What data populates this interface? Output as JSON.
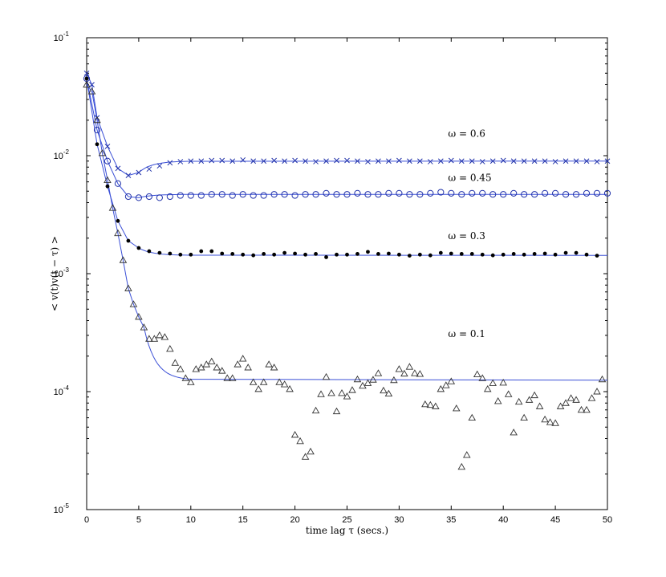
{
  "chart_data": {
    "type": "scatter",
    "title": "",
    "xlabel": "time lag τ (secs.)",
    "ylabel": "< v(t)v(t − τ) >",
    "xlim": [
      0,
      50
    ],
    "ylim": [
      1e-05,
      0.1
    ],
    "yscale": "log",
    "grid": false,
    "legend": "none",
    "x_ticks": [
      0,
      5,
      10,
      15,
      20,
      25,
      30,
      35,
      40,
      45,
      50
    ],
    "x_tick_labels": [
      "0",
      "5",
      "10",
      "15",
      "20",
      "25",
      "30",
      "35",
      "40",
      "45",
      "50"
    ],
    "y_ticks": [
      {
        "value": 1e-05,
        "base": "10",
        "exp": "-5"
      },
      {
        "value": 0.0001,
        "base": "10",
        "exp": "-4"
      },
      {
        "value": 0.001,
        "base": "10",
        "exp": "-3"
      },
      {
        "value": 0.01,
        "base": "10",
        "exp": "-2"
      },
      {
        "value": 0.1,
        "base": "10",
        "exp": "-1"
      }
    ],
    "colors": {
      "fit_line": "#3a4fd6",
      "x_marker": "#2233aa",
      "o_marker": "#2233aa",
      "dot_marker": "#000000",
      "triangle_marker": "#333333"
    },
    "annotations": [
      {
        "text": "ω = 0.6",
        "x": 34.7,
        "y": 0.0145
      },
      {
        "text": "ω = 0.45",
        "x": 34.7,
        "y": 0.0061
      },
      {
        "text": "ω = 0.3",
        "x": 34.7,
        "y": 0.00196
      },
      {
        "text": "ω = 0.1",
        "x": 34.7,
        "y": 0.00029
      }
    ],
    "series": [
      {
        "marker": "x",
        "fit_asymptote": 0.009,
        "points": [
          [
            0,
            0.05
          ],
          [
            0.5,
            0.04
          ],
          [
            1,
            0.021
          ],
          [
            2,
            0.012
          ],
          [
            3,
            0.0078
          ],
          [
            4,
            0.0068
          ],
          [
            5,
            0.0072
          ],
          [
            6,
            0.0077
          ],
          [
            7,
            0.0082
          ],
          [
            8,
            0.0087
          ],
          [
            9,
            0.0089
          ],
          [
            10,
            0.009
          ],
          [
            11,
            0.009
          ],
          [
            12,
            0.0091
          ],
          [
            13,
            0.0091
          ],
          [
            14,
            0.009
          ],
          [
            15,
            0.0092
          ],
          [
            16,
            0.009
          ],
          [
            17,
            0.009
          ],
          [
            18,
            0.0091
          ],
          [
            19,
            0.009
          ],
          [
            20,
            0.0091
          ],
          [
            21,
            0.009
          ],
          [
            22,
            0.0089
          ],
          [
            23,
            0.009
          ],
          [
            24,
            0.0091
          ],
          [
            25,
            0.0091
          ],
          [
            26,
            0.009
          ],
          [
            27,
            0.0089
          ],
          [
            28,
            0.009
          ],
          [
            29,
            0.009
          ],
          [
            30,
            0.0091
          ],
          [
            31,
            0.009
          ],
          [
            32,
            0.009
          ],
          [
            33,
            0.0089
          ],
          [
            34,
            0.009
          ],
          [
            35,
            0.0091
          ],
          [
            36,
            0.009
          ],
          [
            37,
            0.009
          ],
          [
            38,
            0.0089
          ],
          [
            39,
            0.009
          ],
          [
            40,
            0.0091
          ],
          [
            41,
            0.009
          ],
          [
            42,
            0.009
          ],
          [
            43,
            0.009
          ],
          [
            44,
            0.009
          ],
          [
            45,
            0.0089
          ],
          [
            46,
            0.009
          ],
          [
            47,
            0.009
          ],
          [
            48,
            0.009
          ],
          [
            49,
            0.0089
          ],
          [
            50,
            0.009
          ]
        ]
      },
      {
        "marker": "o",
        "fit_asymptote": 0.0047,
        "points": [
          [
            0,
            0.045
          ],
          [
            1,
            0.0165
          ],
          [
            2,
            0.009
          ],
          [
            3,
            0.0058
          ],
          [
            4,
            0.0045
          ],
          [
            5,
            0.0044
          ],
          [
            6,
            0.0045
          ],
          [
            7,
            0.0044
          ],
          [
            8,
            0.0045
          ],
          [
            9,
            0.0046
          ],
          [
            10,
            0.0046
          ],
          [
            11,
            0.0046
          ],
          [
            12,
            0.0047
          ],
          [
            13,
            0.0047
          ],
          [
            14,
            0.0046
          ],
          [
            15,
            0.0047
          ],
          [
            16,
            0.0046
          ],
          [
            17,
            0.0046
          ],
          [
            18,
            0.0047
          ],
          [
            19,
            0.0047
          ],
          [
            20,
            0.0046
          ],
          [
            21,
            0.0047
          ],
          [
            22,
            0.0047
          ],
          [
            23,
            0.0048
          ],
          [
            24,
            0.0047
          ],
          [
            25,
            0.0047
          ],
          [
            26,
            0.0048
          ],
          [
            27,
            0.0047
          ],
          [
            28,
            0.0047
          ],
          [
            29,
            0.0048
          ],
          [
            30,
            0.0048
          ],
          [
            31,
            0.0047
          ],
          [
            32,
            0.0047
          ],
          [
            33,
            0.0048
          ],
          [
            34,
            0.0049
          ],
          [
            35,
            0.0048
          ],
          [
            36,
            0.0047
          ],
          [
            37,
            0.0048
          ],
          [
            38,
            0.0048
          ],
          [
            39,
            0.0047
          ],
          [
            40,
            0.0047
          ],
          [
            41,
            0.0048
          ],
          [
            42,
            0.0047
          ],
          [
            43,
            0.0047
          ],
          [
            44,
            0.0048
          ],
          [
            45,
            0.0048
          ],
          [
            46,
            0.0047
          ],
          [
            47,
            0.0047
          ],
          [
            48,
            0.0048
          ],
          [
            49,
            0.0048
          ],
          [
            50,
            0.0048
          ]
        ]
      },
      {
        "marker": "dot",
        "fit_asymptote": 0.00143,
        "points": [
          [
            0,
            0.045
          ],
          [
            1,
            0.0125
          ],
          [
            2,
            0.0055
          ],
          [
            3,
            0.0028
          ],
          [
            4,
            0.0019
          ],
          [
            5,
            0.00165
          ],
          [
            6,
            0.00155
          ],
          [
            7,
            0.0015
          ],
          [
            8,
            0.00148
          ],
          [
            9,
            0.00145
          ],
          [
            10,
            0.00145
          ],
          [
            11,
            0.00155
          ],
          [
            12,
            0.00155
          ],
          [
            13,
            0.00148
          ],
          [
            14,
            0.00147
          ],
          [
            15,
            0.00145
          ],
          [
            16,
            0.00143
          ],
          [
            17,
            0.00147
          ],
          [
            18,
            0.00145
          ],
          [
            19,
            0.0015
          ],
          [
            20,
            0.00148
          ],
          [
            21,
            0.00145
          ],
          [
            22,
            0.00147
          ],
          [
            23,
            0.00138
          ],
          [
            24,
            0.00145
          ],
          [
            25,
            0.00145
          ],
          [
            26,
            0.00147
          ],
          [
            27,
            0.00153
          ],
          [
            28,
            0.00147
          ],
          [
            29,
            0.00148
          ],
          [
            30,
            0.00145
          ],
          [
            31,
            0.00142
          ],
          [
            32,
            0.00145
          ],
          [
            33,
            0.00143
          ],
          [
            34,
            0.0015
          ],
          [
            35,
            0.00148
          ],
          [
            36,
            0.00147
          ],
          [
            37,
            0.00147
          ],
          [
            38,
            0.00145
          ],
          [
            39,
            0.00143
          ],
          [
            40,
            0.00145
          ],
          [
            41,
            0.00147
          ],
          [
            42,
            0.00145
          ],
          [
            43,
            0.00147
          ],
          [
            44,
            0.00148
          ],
          [
            45,
            0.00145
          ],
          [
            46,
            0.0015
          ],
          [
            47,
            0.0015
          ],
          [
            48,
            0.00145
          ],
          [
            49,
            0.00142
          ]
        ]
      },
      {
        "marker": "triangle",
        "fit_asymptote": 0.000125,
        "points": [
          [
            0,
            0.04
          ],
          [
            0.5,
            0.035
          ],
          [
            1,
            0.02
          ],
          [
            1.5,
            0.0105
          ],
          [
            2,
            0.0062
          ],
          [
            2.5,
            0.0036
          ],
          [
            3,
            0.0022
          ],
          [
            3.5,
            0.0013
          ],
          [
            4,
            0.00075
          ],
          [
            4.5,
            0.00055
          ],
          [
            5,
            0.00043
          ],
          [
            5.5,
            0.00035
          ],
          [
            6,
            0.00028
          ],
          [
            6.5,
            0.00028
          ],
          [
            7,
            0.0003
          ],
          [
            7.5,
            0.00029
          ],
          [
            8,
            0.00023
          ],
          [
            8.5,
            0.000175
          ],
          [
            9,
            0.000155
          ],
          [
            9.5,
            0.00013
          ],
          [
            10,
            0.00012
          ],
          [
            10.5,
            0.000155
          ],
          [
            11,
            0.00016
          ],
          [
            11.5,
            0.00017
          ],
          [
            12,
            0.00018
          ],
          [
            12.5,
            0.00016
          ],
          [
            13,
            0.00015
          ],
          [
            13.5,
            0.00013
          ],
          [
            14,
            0.00013
          ],
          [
            14.5,
            0.00017
          ],
          [
            15,
            0.00019
          ],
          [
            15.5,
            0.00016
          ],
          [
            16,
            0.00012
          ],
          [
            16.5,
            0.000105
          ],
          [
            17,
            0.00012
          ],
          [
            17.5,
            0.00017
          ],
          [
            18,
            0.00016
          ],
          [
            18.5,
            0.00012
          ],
          [
            19,
            0.000115
          ],
          [
            19.5,
            0.000105
          ],
          [
            20,
            4.3e-05
          ],
          [
            20.5,
            3.8e-05
          ],
          [
            21,
            2.8e-05
          ],
          [
            21.5,
            3.1e-05
          ],
          [
            22,
            6.9e-05
          ],
          [
            22.5,
            9.5e-05
          ],
          [
            23,
            0.000133
          ],
          [
            23.5,
            9.7e-05
          ],
          [
            24,
            6.8e-05
          ],
          [
            24.5,
            9.7e-05
          ],
          [
            25,
            9.1e-05
          ],
          [
            25.5,
            0.000103
          ],
          [
            26,
            0.000127
          ],
          [
            26.5,
            0.000112
          ],
          [
            27,
            0.000118
          ],
          [
            27.5,
            0.000126
          ],
          [
            28,
            0.000143
          ],
          [
            28.5,
            0.000102
          ],
          [
            29,
            9.6e-05
          ],
          [
            29.5,
            0.000125
          ],
          [
            30,
            0.000155
          ],
          [
            30.5,
            0.000142
          ],
          [
            31,
            0.000162
          ],
          [
            31.5,
            0.000143
          ],
          [
            32,
            0.000141
          ],
          [
            32.5,
            7.8e-05
          ],
          [
            33,
            7.7e-05
          ],
          [
            33.5,
            7.5e-05
          ],
          [
            34,
            0.000105
          ],
          [
            34.5,
            0.000113
          ],
          [
            35,
            0.000122
          ],
          [
            35.5,
            7.2e-05
          ],
          [
            36,
            2.3e-05
          ],
          [
            36.5,
            2.9e-05
          ],
          [
            37,
            6e-05
          ],
          [
            37.5,
            0.00014
          ],
          [
            38,
            0.00013
          ],
          [
            38.5,
            0.000105
          ],
          [
            39,
            0.000118
          ],
          [
            39.5,
            8.3e-05
          ],
          [
            40,
            0.000119
          ],
          [
            40.5,
            9.5e-05
          ],
          [
            41,
            4.5e-05
          ],
          [
            41.5,
            8.2e-05
          ],
          [
            42,
            6e-05
          ],
          [
            42.5,
            8.5e-05
          ],
          [
            43,
            9.3e-05
          ],
          [
            43.5,
            7.5e-05
          ],
          [
            44,
            5.8e-05
          ],
          [
            44.5,
            5.5e-05
          ],
          [
            45,
            5.4e-05
          ],
          [
            45.5,
            7.5e-05
          ],
          [
            46,
            8e-05
          ],
          [
            46.5,
            8.8e-05
          ],
          [
            47,
            8.5e-05
          ],
          [
            47.5,
            7e-05
          ],
          [
            48,
            7e-05
          ],
          [
            48.5,
            8.8e-05
          ],
          [
            49,
            0.0001
          ],
          [
            49.5,
            0.000127
          ]
        ]
      }
    ]
  }
}
